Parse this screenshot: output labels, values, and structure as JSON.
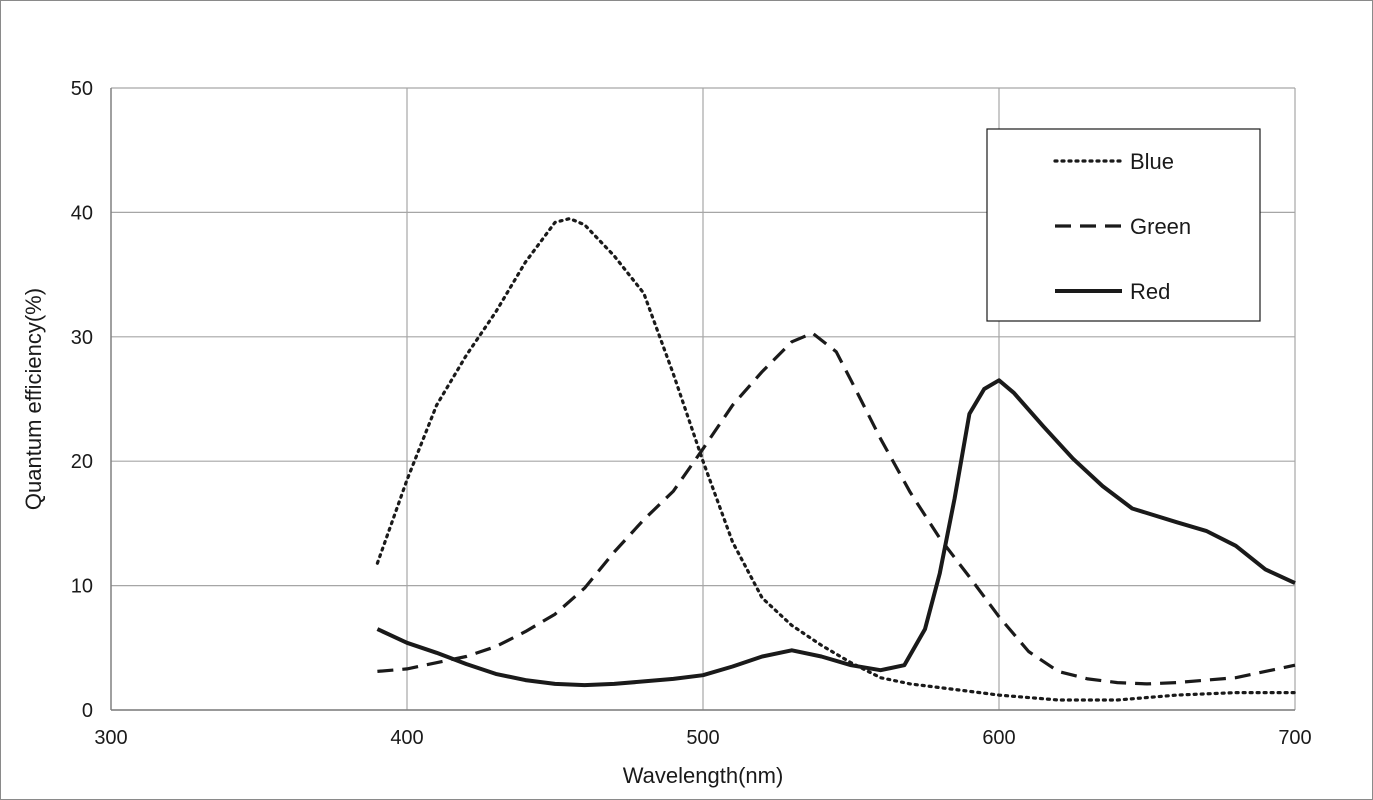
{
  "chart_data": {
    "type": "line",
    "xlabel": "Wavelength(nm)",
    "ylabel": "Quantum  efficiency(%)",
    "xlim": [
      300,
      700
    ],
    "ylim": [
      0,
      50
    ],
    "x_ticks": [
      300,
      400,
      500,
      600,
      700
    ],
    "y_ticks": [
      0,
      10,
      20,
      30,
      40,
      50
    ],
    "grid": true,
    "legend_position": "top-right",
    "series": [
      {
        "name": "Blue",
        "style": "dotted",
        "color": "#1a1a1a",
        "points": [
          [
            390,
            11.8
          ],
          [
            400,
            18.5
          ],
          [
            410,
            24.5
          ],
          [
            420,
            28.5
          ],
          [
            430,
            32
          ],
          [
            440,
            36
          ],
          [
            450,
            39.2
          ],
          [
            455,
            39.5
          ],
          [
            460,
            39
          ],
          [
            470,
            36.5
          ],
          [
            480,
            33.5
          ],
          [
            490,
            27
          ],
          [
            500,
            20
          ],
          [
            510,
            13.5
          ],
          [
            520,
            9
          ],
          [
            530,
            6.8
          ],
          [
            540,
            5.2
          ],
          [
            550,
            3.8
          ],
          [
            560,
            2.6
          ],
          [
            570,
            2.1
          ],
          [
            580,
            1.8
          ],
          [
            590,
            1.5
          ],
          [
            600,
            1.2
          ],
          [
            620,
            0.8
          ],
          [
            640,
            0.8
          ],
          [
            660,
            1.2
          ],
          [
            680,
            1.4
          ],
          [
            700,
            1.4
          ]
        ]
      },
      {
        "name": "Green",
        "style": "dashed",
        "color": "#1a1a1a",
        "points": [
          [
            390,
            3.1
          ],
          [
            400,
            3.3
          ],
          [
            410,
            3.8
          ],
          [
            420,
            4.3
          ],
          [
            430,
            5.1
          ],
          [
            440,
            6.3
          ],
          [
            450,
            7.7
          ],
          [
            460,
            9.8
          ],
          [
            470,
            12.7
          ],
          [
            480,
            15.3
          ],
          [
            490,
            17.6
          ],
          [
            500,
            21
          ],
          [
            510,
            24.5
          ],
          [
            520,
            27.2
          ],
          [
            530,
            29.6
          ],
          [
            537,
            30.3
          ],
          [
            545,
            28.8
          ],
          [
            550,
            26.5
          ],
          [
            560,
            21.8
          ],
          [
            570,
            17.5
          ],
          [
            580,
            13.8
          ],
          [
            590,
            10.7
          ],
          [
            600,
            7.5
          ],
          [
            610,
            4.7
          ],
          [
            620,
            3.1
          ],
          [
            630,
            2.5
          ],
          [
            640,
            2.2
          ],
          [
            650,
            2.1
          ],
          [
            660,
            2.2
          ],
          [
            680,
            2.6
          ],
          [
            700,
            3.6
          ]
        ]
      },
      {
        "name": "Red",
        "style": "solid",
        "color": "#1a1a1a",
        "points": [
          [
            390,
            6.5
          ],
          [
            400,
            5.4
          ],
          [
            410,
            4.6
          ],
          [
            420,
            3.7
          ],
          [
            430,
            2.9
          ],
          [
            440,
            2.4
          ],
          [
            450,
            2.1
          ],
          [
            460,
            2
          ],
          [
            470,
            2.1
          ],
          [
            480,
            2.3
          ],
          [
            490,
            2.5
          ],
          [
            500,
            2.8
          ],
          [
            510,
            3.5
          ],
          [
            520,
            4.3
          ],
          [
            530,
            4.8
          ],
          [
            540,
            4.3
          ],
          [
            550,
            3.6
          ],
          [
            560,
            3.2
          ],
          [
            568,
            3.6
          ],
          [
            575,
            6.5
          ],
          [
            580,
            11
          ],
          [
            585,
            17
          ],
          [
            590,
            23.8
          ],
          [
            595,
            25.8
          ],
          [
            600,
            26.5
          ],
          [
            605,
            25.5
          ],
          [
            615,
            22.8
          ],
          [
            625,
            20.2
          ],
          [
            635,
            18
          ],
          [
            645,
            16.2
          ],
          [
            660,
            15.1
          ],
          [
            670,
            14.4
          ],
          [
            680,
            13.2
          ],
          [
            690,
            11.3
          ],
          [
            700,
            10.2
          ]
        ]
      }
    ]
  }
}
